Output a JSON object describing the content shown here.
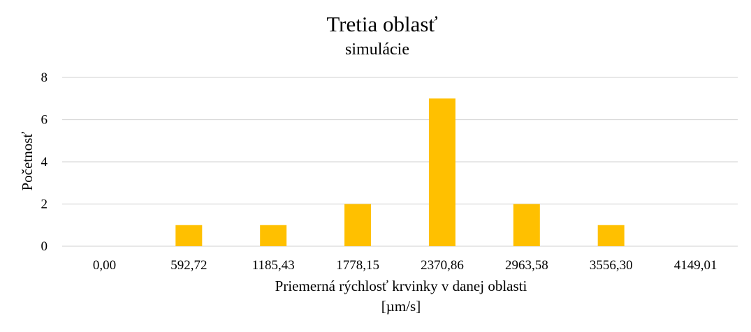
{
  "chart_data": {
    "type": "bar",
    "title": "Tretia oblasť",
    "subtitle": "simulácie",
    "xlabel_line1": "Priemerná rýchlosť krvinky v danej oblasti",
    "xlabel_line2": "[µm/s]",
    "ylabel": "Početnosť",
    "categories": [
      "0,00",
      "592,72",
      "1185,43",
      "1778,15",
      "2370,86",
      "2963,58",
      "3556,30",
      "4149,01"
    ],
    "values": [
      0,
      1,
      1,
      2,
      7,
      2,
      1,
      0
    ],
    "ylim": [
      0,
      8
    ],
    "yticks": [
      "0",
      "2",
      "4",
      "6",
      "8"
    ],
    "grid": true,
    "legend": "none",
    "colors": {
      "bar": "#FFC000",
      "grid": "#D9D9D9",
      "text": "#000000"
    }
  }
}
